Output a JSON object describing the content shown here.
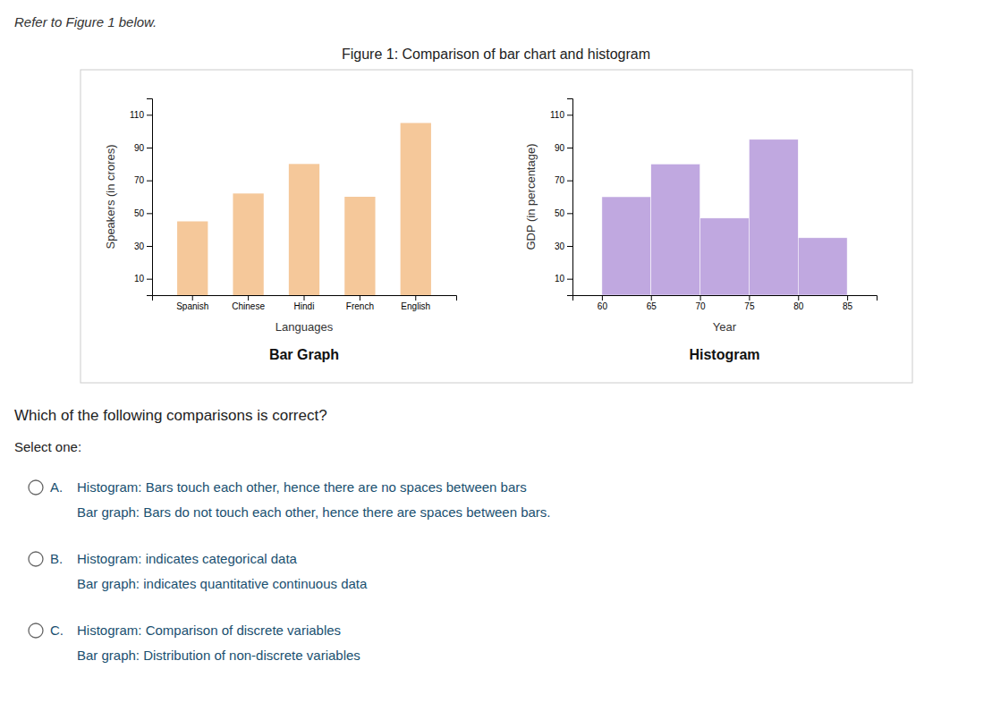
{
  "header_text": "Refer to Figure 1 below.",
  "title": "Figure 1: Comparison of bar chart and histogram",
  "chart_data": [
    {
      "type": "bar",
      "title": "Bar Graph",
      "categories": [
        "Spanish",
        "Chinese",
        "Hindi",
        "French",
        "English"
      ],
      "values": [
        45,
        62,
        80,
        60,
        105
      ],
      "color": "#f5c89a",
      "xlabel": "Languages",
      "ylabel": "Speakers (in crores)",
      "ylim": [
        0,
        120
      ],
      "yticks": [
        10,
        30,
        50,
        70,
        90,
        110
      ],
      "grid": false
    },
    {
      "type": "histogram",
      "title": "Histogram",
      "bins": [
        60,
        65,
        70,
        75,
        80,
        85
      ],
      "values": [
        60,
        80,
        47,
        95,
        35
      ],
      "color": "#c0a8e0",
      "xlabel": "Year",
      "ylabel": "GDP (in percentage)",
      "xlim": [
        57,
        88
      ],
      "xticks": [
        60,
        65,
        70,
        75,
        80,
        85
      ],
      "ylim": [
        0,
        120
      ],
      "yticks": [
        10,
        30,
        50,
        70,
        90,
        110
      ],
      "grid": false
    }
  ],
  "question": "Which of the following comparisons is correct?",
  "select_one": "Select one:",
  "options": [
    {
      "label": "A.",
      "lines": [
        "Histogram: Bars touch each other, hence there are no spaces between bars",
        "Bar graph: Bars do not touch each other, hence there are spaces between bars."
      ]
    },
    {
      "label": "B.",
      "lines": [
        "Histogram: indicates categorical data",
        "Bar graph: indicates quantitative continuous data"
      ]
    },
    {
      "label": "C.",
      "lines": [
        "Histogram: Comparison of discrete variables",
        "Bar graph: Distribution of non-discrete variables"
      ]
    }
  ]
}
